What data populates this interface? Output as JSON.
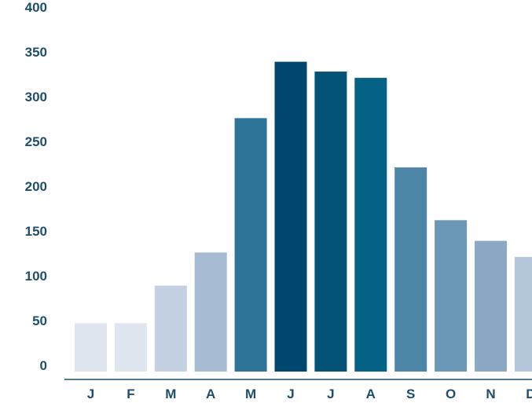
{
  "chart_data": {
    "type": "bar",
    "title": "",
    "xlabel": "",
    "ylabel": "",
    "categories": [
      "J",
      "F",
      "M",
      "A",
      "M",
      "J",
      "J",
      "A",
      "S",
      "O",
      "N",
      "D"
    ],
    "values": [
      54,
      54,
      96,
      133,
      283,
      346,
      335,
      328,
      228,
      169,
      146,
      128
    ],
    "ylim": [
      0,
      400
    ],
    "yticks": [
      0,
      50,
      100,
      150,
      200,
      250,
      300,
      350,
      400
    ],
    "grid": false,
    "legend": "none",
    "bar_colors": [
      "#dfe6f0",
      "#dfe6f0",
      "#c3d1e2",
      "#a7bcd3",
      "#2e7398",
      "#00476f",
      "#035377",
      "#036286",
      "#4e86a8",
      "#6b98b7",
      "#8ba9c5",
      "#b4c6da"
    ],
    "axis_color": "#1f4e6b",
    "text_color": "#1f4e6b"
  }
}
